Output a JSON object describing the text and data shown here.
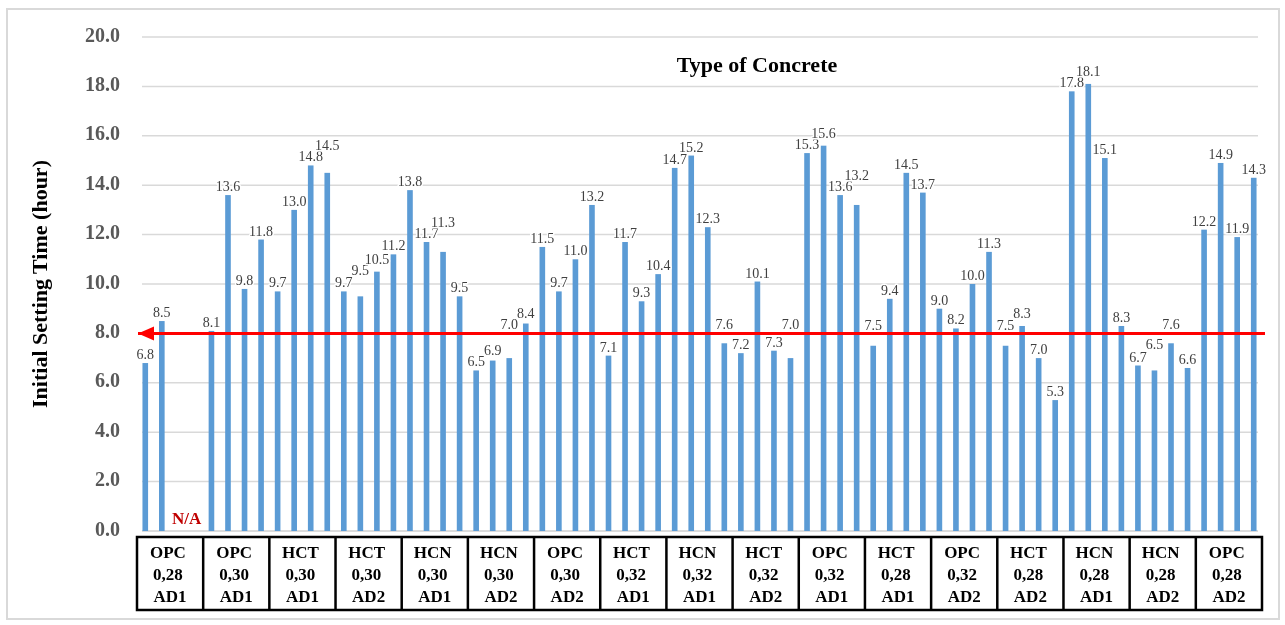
{
  "chart_data": {
    "type": "bar",
    "title": "Type of Concrete",
    "ylabel": "Initial Setting Time (hour)",
    "categories": [
      "OPC 0,28 AD1",
      "OPC 0,30 AD1",
      "HCT 0,30 AD1",
      "HCT 0,30 AD2",
      "HCN 0,30 AD1",
      "HCN 0,30 AD2",
      "OPC 0,30 AD2",
      "HCT 0,32 AD1",
      "HCN 0,32 AD1",
      "HCT 0,32 AD2",
      "OPC 0,32 AD1",
      "HCT 0,28 AD1",
      "OPC 0,32 AD2",
      "HCT 0,28 AD2",
      "HCN 0,28 AD1",
      "HCN 0,28 AD2",
      "OPC 0,28 AD2"
    ],
    "series": [
      {
        "color": "#5b9bd5",
        "values": [
          6.8,
          8.1,
          9.7,
          9.7,
          13.8,
          6.5,
          11.5,
          7.1,
          14.7,
          7.2,
          15.3,
          7.5,
          9.0,
          7.5,
          17.8,
          6.7,
          12.2
        ],
        "value_labels": [
          "6.8",
          "8.1",
          "9.7",
          "9.7",
          "13.8",
          "6.5",
          "11.5",
          "7.1",
          "14.7",
          "7.2",
          "15.3",
          "7.5",
          "9.0",
          "7.5",
          "17.8",
          "6.7",
          "12.2"
        ]
      },
      {
        "color": "#5b9bd5",
        "values": [
          8.5,
          13.6,
          13.0,
          9.5,
          11.7,
          6.9,
          9.7,
          11.7,
          15.2,
          10.1,
          15.6,
          9.4,
          8.2,
          8.3,
          18.1,
          6.5,
          14.9
        ],
        "value_labels": [
          "8.5",
          "13.6",
          "13.0",
          "9.5",
          "11.7",
          "6.9",
          "9.7",
          "11.7",
          "15.2",
          "10.1",
          "15.6",
          "9.4",
          "8.2",
          "8.3",
          "18.1",
          "6.5",
          "14.9"
        ]
      },
      {
        "color": "#5b9bd5",
        "values": [
          null,
          9.8,
          14.8,
          10.5,
          11.3,
          7.0,
          11.0,
          9.3,
          12.3,
          7.3,
          13.6,
          14.5,
          10.0,
          7.0,
          15.1,
          7.6,
          11.9
        ],
        "value_labels": [
          null,
          "9.8",
          "14.8",
          "10.5",
          "11.3",
          "7.0",
          "11.0",
          "9.3",
          "12.3",
          "7.3",
          "13.6",
          "14.5",
          "10.0",
          "7.0",
          "15.1",
          "7.6",
          "11.9"
        ]
      },
      {
        "color": "#5b9bd5",
        "values": [
          null,
          11.8,
          14.5,
          11.2,
          9.5,
          8.4,
          13.2,
          10.4,
          7.6,
          7.0,
          13.2,
          13.7,
          11.3,
          5.3,
          8.3,
          6.6,
          14.3
        ],
        "value_labels": [
          null,
          "11.8",
          "14.5",
          "11.2",
          "9.5",
          "8.4",
          "13.2",
          "10.4",
          "7.6",
          "7.0",
          "13.2",
          "13.7",
          "11.3",
          "5.3",
          "8.3",
          "6.6",
          "14.3"
        ]
      }
    ],
    "ylim": [
      0,
      20
    ],
    "yticks": [
      {
        "value": 0,
        "label": "0.0"
      },
      {
        "value": 2,
        "label": "2.0"
      },
      {
        "value": 4,
        "label": "4.0"
      },
      {
        "value": 6,
        "label": "6.0"
      },
      {
        "value": 8,
        "label": "8.0"
      },
      {
        "value": 10,
        "label": "10.0"
      },
      {
        "value": 12,
        "label": "12.0"
      },
      {
        "value": 14,
        "label": "14.0"
      },
      {
        "value": 16,
        "label": "16.0"
      },
      {
        "value": 18,
        "label": "18.0"
      },
      {
        "value": 20,
        "label": "20.0"
      }
    ],
    "grid": "y",
    "ref_lines": [
      {
        "axis": "y",
        "value": 8,
        "color": "#ff0000"
      }
    ],
    "annotations": [
      {
        "text": "N/A",
        "x": "OPC 0,28 AD1",
        "y": 0
      }
    ]
  }
}
